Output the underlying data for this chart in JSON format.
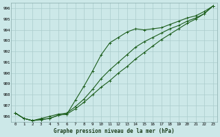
{
  "title": "Graphe pression niveau de la mer (hPa)",
  "bg_color": "#cce8e8",
  "grid_color": "#aacccc",
  "line_color": "#1a5c1a",
  "x_labels": [
    "0",
    "1",
    "2",
    "3",
    "4",
    "5",
    "6",
    "7",
    "8",
    "9",
    "10",
    "11",
    "12",
    "13",
    "14",
    "15",
    "16",
    "17",
    "18",
    "19",
    "20",
    "21",
    "22",
    "23"
  ],
  "ylim": [
    985.5,
    996.5
  ],
  "yticks": [
    986,
    987,
    988,
    989,
    990,
    991,
    992,
    993,
    994,
    995,
    996
  ],
  "line1": [
    986.3,
    985.8,
    985.6,
    985.7,
    985.8,
    986.1,
    986.2,
    986.7,
    987.3,
    988.0,
    988.7,
    989.3,
    990.0,
    990.6,
    991.3,
    991.9,
    992.5,
    993.1,
    993.6,
    994.1,
    994.6,
    995.0,
    995.5,
    996.2
  ],
  "line2": [
    986.3,
    985.8,
    985.6,
    985.7,
    985.8,
    986.1,
    986.2,
    987.5,
    988.8,
    990.2,
    991.7,
    992.8,
    993.3,
    993.8,
    994.1,
    994.0,
    994.1,
    994.2,
    994.5,
    994.8,
    995.1,
    995.3,
    995.7,
    996.2
  ],
  "line3": [
    986.3,
    985.8,
    985.6,
    985.8,
    986.0,
    986.2,
    986.3,
    986.9,
    987.6,
    988.5,
    989.5,
    990.3,
    991.0,
    991.7,
    992.4,
    992.9,
    993.3,
    993.7,
    994.1,
    994.4,
    994.8,
    995.1,
    995.5,
    996.2
  ]
}
